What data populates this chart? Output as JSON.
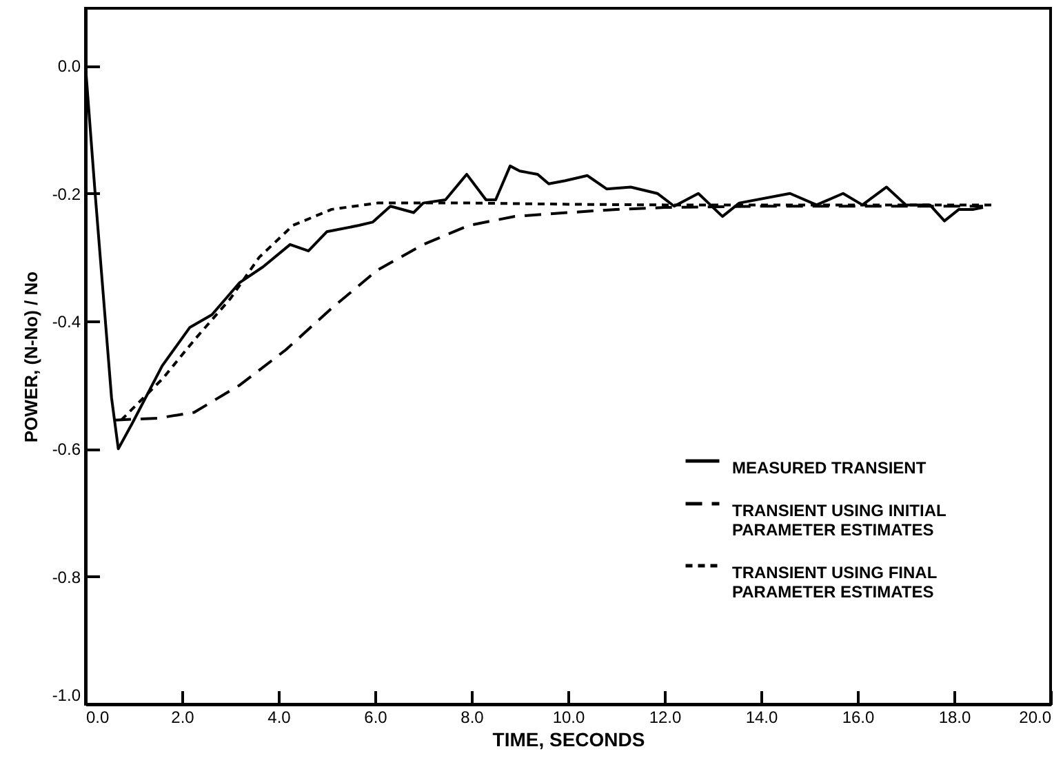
{
  "chart_data": {
    "type": "line",
    "xlabel": "TIME, SECONDS",
    "ylabel": "POWER, (N-No) / No",
    "xlim": [
      0,
      20
    ],
    "ylim": [
      -1.0,
      0.09
    ],
    "xticks": [
      {
        "value": 0,
        "label": "0.0"
      },
      {
        "value": 2,
        "label": "2.0"
      },
      {
        "value": 4,
        "label": "4.0"
      },
      {
        "value": 6,
        "label": "6.0"
      },
      {
        "value": 8,
        "label": "8.0"
      },
      {
        "value": 10,
        "label": "10.0"
      },
      {
        "value": 12,
        "label": "12.0"
      },
      {
        "value": 14,
        "label": "14.0"
      },
      {
        "value": 16,
        "label": "16.0"
      },
      {
        "value": 18,
        "label": "18.0"
      },
      {
        "value": 20,
        "label": "20.0"
      }
    ],
    "yticks": [
      {
        "value": 0,
        "label": "0.0"
      },
      {
        "value": -0.2,
        "label": "-0.2"
      },
      {
        "value": -0.4,
        "label": "-0.4"
      },
      {
        "value": -0.6,
        "label": "-0.6"
      },
      {
        "value": -0.8,
        "label": "-0.8"
      },
      {
        "value": -1.0,
        "label": "-1.0"
      }
    ],
    "grid": false,
    "legend": "bottom right",
    "marker": "none",
    "series": [
      {
        "name": "MEASURED TRANSIENT",
        "color": "#000000",
        "line_style": "solid",
        "x": [
          0,
          0.2,
          0.54,
          0.68,
          0.97,
          1.59,
          2.16,
          2.62,
          3.19,
          3.68,
          4.24,
          4.62,
          5.0,
          5.67,
          5.95,
          6.32,
          6.8,
          7.0,
          7.46,
          7.9,
          8.3,
          8.5,
          8.8,
          9.0,
          9.37,
          9.6,
          9.94,
          10.4,
          10.8,
          11.3,
          11.85,
          12.2,
          12.7,
          13.2,
          13.55,
          14.6,
          15.15,
          15.7,
          16.1,
          16.6,
          17.0,
          17.5,
          17.8,
          18.1,
          18.4,
          18.6
        ],
        "values": [
          0,
          -0.2,
          -0.52,
          -0.6,
          -0.56,
          -0.47,
          -0.41,
          -0.39,
          -0.34,
          -0.315,
          -0.28,
          -0.29,
          -0.26,
          -0.25,
          -0.245,
          -0.22,
          -0.23,
          -0.215,
          -0.21,
          -0.17,
          -0.21,
          -0.21,
          -0.157,
          -0.165,
          -0.17,
          -0.185,
          -0.18,
          -0.172,
          -0.193,
          -0.19,
          -0.2,
          -0.22,
          -0.2,
          -0.236,
          -0.215,
          -0.2,
          -0.218,
          -0.2,
          -0.218,
          -0.19,
          -0.218,
          -0.218,
          -0.243,
          -0.225,
          -0.225,
          -0.222
        ]
      },
      {
        "name": "TRANSIENT USING INITIAL\nPARAMETER ESTIMATES",
        "color": "#000000",
        "line_style": "dashed",
        "x": [
          0.6,
          1.5,
          2.25,
          3.2,
          4.15,
          5.1,
          6.05,
          7.0,
          7.95,
          8.9,
          10.0,
          11.0,
          12.0,
          14.0,
          16.0,
          18.6
        ],
        "values": [
          -0.555,
          -0.552,
          -0.543,
          -0.5,
          -0.445,
          -0.38,
          -0.32,
          -0.28,
          -0.25,
          -0.236,
          -0.23,
          -0.225,
          -0.222,
          -0.22,
          -0.22,
          -0.22
        ]
      },
      {
        "name": "TRANSIENT USING FINAL\nPARAMETER ESTIMATES",
        "color": "#000000",
        "line_style": "dotted",
        "x": [
          0.74,
          1.6,
          2.25,
          3.0,
          3.6,
          4.3,
          5.1,
          6.05,
          8.0,
          10.0,
          12.0,
          14.0,
          16.0,
          18.8
        ],
        "values": [
          -0.555,
          -0.49,
          -0.43,
          -0.365,
          -0.3,
          -0.25,
          -0.225,
          -0.215,
          -0.215,
          -0.217,
          -0.218,
          -0.218,
          -0.218,
          -0.218
        ]
      }
    ]
  }
}
